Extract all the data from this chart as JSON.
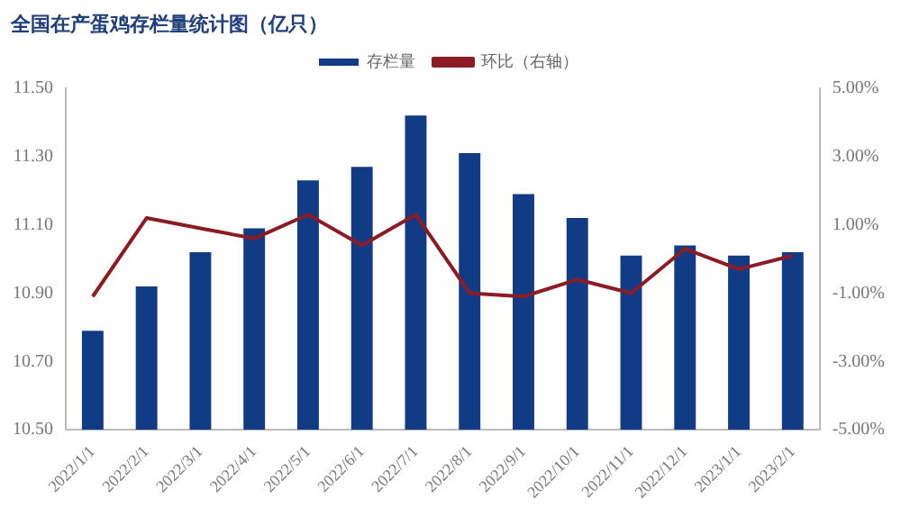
{
  "chart_data": {
    "type": "bar",
    "title": "全国在产蛋鸡存栏量统计图（亿只）",
    "categories": [
      "2022/1/1",
      "2022/2/1",
      "2022/3/1",
      "2022/4/1",
      "2022/5/1",
      "2022/6/1",
      "2022/7/1",
      "2022/8/1",
      "2022/9/1",
      "2022/10/1",
      "2022/11/1",
      "2022/12/1",
      "2023/1/1",
      "2023/2/1"
    ],
    "series": [
      {
        "name": "存栏量",
        "color": "#123b85",
        "values": [
          10.79,
          10.92,
          11.02,
          11.09,
          11.23,
          11.27,
          11.42,
          11.31,
          11.19,
          11.12,
          11.01,
          11.04,
          11.01,
          11.02
        ]
      },
      {
        "name": "环比（右轴）",
        "type": "line",
        "axis": "y2",
        "color": "#8b1c24",
        "values": [
          -1.1,
          1.2,
          0.9,
          0.6,
          1.3,
          0.4,
          1.3,
          -1.0,
          -1.1,
          -0.6,
          -1.0,
          0.3,
          -0.3,
          0.1
        ]
      }
    ],
    "ylim": [
      10.5,
      11.5
    ],
    "yticks": [
      {
        "value": 10.5,
        "label": "10.50"
      },
      {
        "value": 10.7,
        "label": "10.70"
      },
      {
        "value": 10.9,
        "label": "10.90"
      },
      {
        "value": 11.1,
        "label": "11.10"
      },
      {
        "value": 11.3,
        "label": "11.30"
      },
      {
        "value": 11.5,
        "label": "11.50"
      }
    ],
    "y2lim": [
      -5,
      5
    ],
    "y2ticks": [
      {
        "value": -5,
        "label": "-5.00%"
      },
      {
        "value": -3,
        "label": "-3.00%"
      },
      {
        "value": -1,
        "label": "-1.00%"
      },
      {
        "value": 1,
        "label": "1.00%"
      },
      {
        "value": 3,
        "label": "3.00%"
      },
      {
        "value": 5,
        "label": "5.00%"
      }
    ],
    "legend": "top",
    "grid": false,
    "marker": "none",
    "line_style": "solid"
  }
}
